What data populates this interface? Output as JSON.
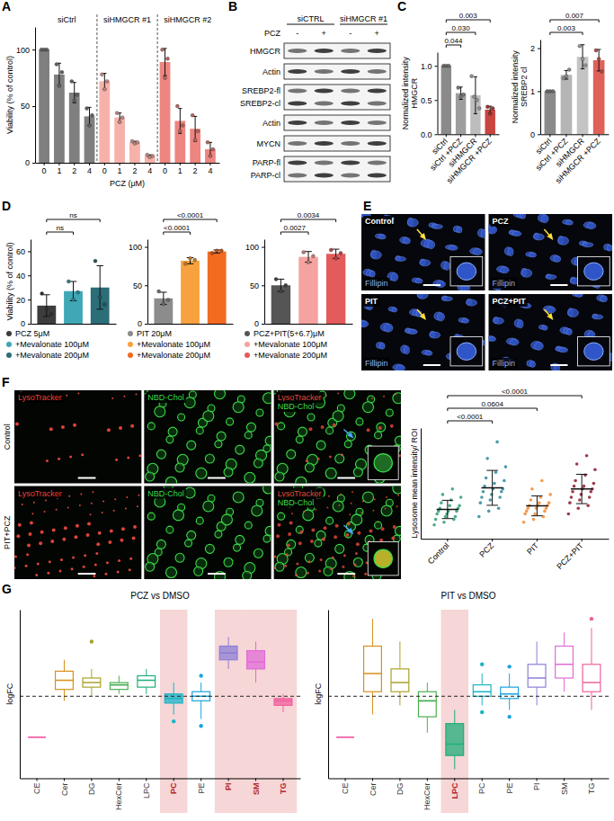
{
  "chart_data": [
    {
      "panel": "A",
      "type": "bar",
      "y_label": "Viability (% of control)",
      "x_label": "PCZ (μM)",
      "ylim": [
        0,
        120
      ],
      "yticks": [
        0,
        50,
        100
      ],
      "series": [
        {
          "name": "siCtrl",
          "color": "#7f7f7f",
          "categories": [
            "0",
            "1",
            "2",
            "4"
          ],
          "values": [
            100,
            78,
            62,
            41
          ],
          "errors": [
            0,
            10,
            9,
            8
          ],
          "points": [
            [
              100,
              100,
              100
            ],
            [
              87,
              68,
              80
            ],
            [
              72,
              55,
              60
            ],
            [
              48,
              33,
              42
            ]
          ]
        },
        {
          "name": "siHMGCR #1",
          "color": "#f6b2aa",
          "categories": [
            "0",
            "1",
            "2",
            "4"
          ],
          "values": [
            72,
            40,
            18,
            6
          ],
          "errors": [
            7,
            4,
            1,
            1
          ],
          "points": [
            [
              78,
              65,
              72
            ],
            [
              44,
              36,
              40
            ],
            [
              19,
              17,
              18
            ],
            [
              7,
              5,
              6
            ]
          ]
        },
        {
          "name": "siHMGCR #2",
          "color": "#ee8580",
          "categories": [
            "0",
            "1",
            "2",
            "4"
          ],
          "values": [
            89,
            37,
            30,
            12
          ],
          "errors": [
            12,
            11,
            11,
            6
          ],
          "points": [
            [
              100,
              75,
              92
            ],
            [
              50,
              28,
              33
            ],
            [
              42,
              20,
              28
            ],
            [
              18,
              6,
              12
            ]
          ]
        }
      ]
    },
    {
      "panel": "B",
      "type": "blot",
      "lane_header": "PCZ",
      "groups": [
        {
          "label": "siCTRL",
          "lanes": [
            "-",
            "+"
          ]
        },
        {
          "label": "siHMGCR #1",
          "lanes": [
            "-",
            "+"
          ]
        }
      ],
      "blocks": [
        [
          "HMGCR"
        ],
        [
          "Actin"
        ],
        [
          "SREBP2-fl",
          "SREBP2-cl"
        ],
        [
          "Actin"
        ],
        [
          "MYCN"
        ],
        [
          "PARP-fl",
          "PARP-cl"
        ]
      ]
    },
    {
      "panel": "C",
      "type": "bar",
      "y_label": "Normalized intensity HMGCR",
      "categories": [
        "siCtrl",
        "siCtrl +PCZ",
        "siHMGCR",
        "siHMGCR +PCZ"
      ],
      "values": [
        1,
        0.6,
        0.57,
        0.36
      ],
      "errors": [
        0,
        0.09,
        0.27,
        0.05
      ],
      "points": [
        [
          1,
          1,
          1
        ],
        [
          0.68,
          0.55,
          0.58
        ],
        [
          0.85,
          0.55,
          0.5,
          0.38
        ],
        [
          0.4,
          0.3,
          0.38
        ]
      ],
      "colors": [
        "#8a8a8a",
        "#9e9e9e",
        "#bdbdbd",
        "#c9453f"
      ],
      "ylim": [
        0,
        1.2
      ],
      "yticks": [
        {
          "value": 0,
          "label": "0.0"
        },
        {
          "value": 0.5,
          "label": "0.5"
        },
        {
          "value": 1,
          "label": "1.0"
        }
      ],
      "comparisons": [
        {
          "a": 0,
          "b": 1,
          "label": "0.044"
        },
        {
          "a": 0,
          "b": 2,
          "label": "0.030"
        },
        {
          "a": 0,
          "b": 3,
          "label": "0.003"
        }
      ]
    },
    {
      "type": "bar",
      "y_label": "Normalized intensity SREBP2 cl",
      "categories": [
        "siCtrl",
        "siCtrl +PCZ",
        "siHMGCR",
        "siHMGCR +PCZ"
      ],
      "values": [
        1,
        1.38,
        1.8,
        1.72
      ],
      "errors": [
        0,
        0.1,
        0.28,
        0.25
      ],
      "points": [
        [
          1,
          1,
          1
        ],
        [
          1.3,
          1.35,
          1.5
        ],
        [
          2.05,
          1.75,
          1.6
        ],
        [
          1.95,
          1.75,
          1.46
        ]
      ],
      "colors": [
        "#8a8a8a",
        "#b5b5b5",
        "#c4c4c4",
        "#e0605a"
      ],
      "ylim": [
        0,
        2.2
      ],
      "yticks": [
        0,
        1,
        2
      ],
      "comparisons": [
        {
          "a": 0,
          "b": 2,
          "label": "0.003"
        },
        {
          "a": 0,
          "b": 3,
          "label": "0.007"
        }
      ]
    },
    {
      "panel": "D",
      "type": "bar",
      "y_label": "Viability (% of control)",
      "categories": [
        "PCZ 5μM",
        "+Mevalonate 100μM",
        "+Mevalonate 200μM"
      ],
      "values": [
        15,
        27,
        30
      ],
      "errors": [
        9,
        8,
        18
      ],
      "points": [
        [
          25,
          12,
          8
        ],
        [
          35,
          20,
          26
        ],
        [
          52,
          22,
          16
        ]
      ],
      "colors": [
        "#3d3d3d",
        "#3fa7b5",
        "#2b6e78"
      ],
      "ylim": [
        0,
        70
      ],
      "yticks": [
        0,
        20,
        40,
        60
      ],
      "legend": "bottom",
      "tick_labels": "y",
      "comparisons": [
        {
          "a": 0,
          "b": 1,
          "label": "ns"
        },
        {
          "a": 0,
          "b": 2,
          "label": "ns"
        }
      ]
    },
    {
      "type": "bar",
      "categories": [
        "PIT 20μM",
        "+Mevalonate 100μM",
        "+Mevalonate 200μM"
      ],
      "values": [
        33,
        82,
        94
      ],
      "errors": [
        8,
        4,
        2
      ],
      "points": [
        [
          42,
          26,
          31
        ],
        [
          78,
          85,
          83
        ],
        [
          92,
          95,
          95
        ]
      ],
      "colors": [
        "#8c8c8c",
        "#f7a23e",
        "#f26b21"
      ],
      "ylim": [
        0,
        110
      ],
      "yticks": [
        0,
        50,
        100
      ],
      "legend": "bottom",
      "tick_labels": "y",
      "comparisons": [
        {
          "a": 0,
          "b": 1,
          "label": "<0.0001"
        },
        {
          "a": 0,
          "b": 2,
          "label": "<0.0001"
        }
      ]
    },
    {
      "type": "bar",
      "categories": [
        "PCZ+PIT(5+6.7)μM",
        "+Mevalonate 100μM",
        "+Mevalonate 200μM"
      ],
      "values": [
        50,
        87,
        91
      ],
      "errors": [
        8,
        7,
        6
      ],
      "points": [
        [
          58,
          42,
          50
        ],
        [
          93,
          80,
          88
        ],
        [
          96,
          85,
          92
        ]
      ],
      "colors": [
        "#555555",
        "#f4a3a0",
        "#e35b5b"
      ],
      "ylim": [
        0,
        110
      ],
      "yticks": [
        0,
        50,
        100
      ],
      "legend": "bottom",
      "tick_labels": "y",
      "comparisons": [
        {
          "a": 0,
          "b": 1,
          "label": "0.0027"
        },
        {
          "a": 0,
          "b": 2,
          "label": "0.0034"
        }
      ]
    },
    {
      "panel": "E",
      "type": "micrograph",
      "titles": [
        "Control",
        "PCZ",
        "PIT",
        "PCZ+PIT"
      ],
      "stain": "Fillipin"
    },
    {
      "panel": "F",
      "type": "micrograph_grid",
      "rows": [
        "Control",
        "PIT+PCZ"
      ],
      "columns": [
        [
          "LysoTracker"
        ],
        [
          "NBD-Chol"
        ],
        [
          "LysoTracker",
          "NBD-Chol"
        ]
      ]
    },
    {
      "type": "dot",
      "y_label": "Lysosome mean intensity/ ROI",
      "categories": [
        "Control",
        "PCZ",
        "PIT",
        "PCZ+PIT"
      ],
      "values": [
        10.6,
        18.4,
        11.9,
        18
      ],
      "errors": [
        3.3,
        6.3,
        3.6,
        5.3
      ],
      "points": [
        [
          5,
          6,
          7,
          7,
          8,
          8,
          9,
          9,
          10,
          10,
          10,
          11,
          11,
          12,
          12,
          13,
          14,
          15,
          16,
          18
        ],
        [
          8,
          10,
          11,
          13,
          14,
          15,
          15,
          16,
          17,
          17,
          18,
          18,
          19,
          20,
          21,
          22,
          24,
          26,
          29,
          35
        ],
        [
          6,
          7,
          8,
          9,
          9,
          10,
          10,
          11,
          11,
          11,
          12,
          12,
          12,
          13,
          13,
          14,
          15,
          16,
          18,
          21
        ],
        [
          9,
          11,
          12,
          13,
          14,
          15,
          15,
          16,
          17,
          17,
          18,
          18,
          19,
          19,
          20,
          21,
          23,
          25,
          27,
          30
        ]
      ],
      "colors": [
        "#2e9e6e",
        "#2a8a9a",
        "#f08a30",
        "#8b1a2b"
      ],
      "ylim": [
        0,
        40
      ],
      "tick_labels": "x",
      "comparisons": [
        {
          "a": 0,
          "b": 1,
          "label": "<0.0001"
        },
        {
          "a": 0,
          "b": 2,
          "label": "0.0604"
        },
        {
          "a": 0,
          "b": 3,
          "label": "<0.0001"
        }
      ]
    },
    {
      "panel": "G",
      "type": "box",
      "title": "PCZ vs DMSO",
      "y_label": "logFC",
      "tick_labels": "x",
      "categories": [
        "CE",
        "Cer",
        "DG",
        "HexCer",
        "LPC",
        "PC",
        "PE",
        "PI",
        "SM",
        "TG"
      ],
      "colors": [
        "#f05fa8",
        "#d98e1a",
        "#a8a32a",
        "#4caf50",
        "#1fae7a",
        "#19b5c7",
        "#1aa3e0",
        "#8e7fd6",
        "#e06bd6",
        "#f0609e"
      ],
      "min": [
        -0.9,
        -0.1,
        0.0,
        0.05,
        0.05,
        -0.4,
        -0.5,
        0.6,
        0.3,
        -0.35
      ],
      "q1": [
        -0.9,
        0.15,
        0.2,
        0.15,
        0.2,
        -0.15,
        -0.1,
        0.8,
        0.6,
        -0.2
      ],
      "median": [
        -0.9,
        0.35,
        0.3,
        0.25,
        0.35,
        -0.05,
        0.0,
        0.95,
        0.75,
        -0.1
      ],
      "q3": [
        -0.9,
        0.55,
        0.4,
        0.3,
        0.45,
        0.05,
        0.1,
        1.1,
        1.0,
        -0.05
      ],
      "max": [
        -0.9,
        0.8,
        0.6,
        0.45,
        0.6,
        0.3,
        0.3,
        1.3,
        1.2,
        0.05
      ],
      "outliers": [
        [],
        [],
        [
          1.2
        ],
        [],
        [],
        [
          -0.55
        ],
        [
          0.45,
          -0.65
        ],
        [],
        [],
        []
      ],
      "highlight": [
        "PC",
        "PI",
        "SM",
        "TG"
      ],
      "reference_value": 0,
      "ylim": [
        -1.8,
        1.9
      ]
    },
    {
      "type": "box",
      "title": "PIT vs DMSO",
      "y_label": "logFC",
      "tick_labels": "x",
      "categories": [
        "CE",
        "Cer",
        "DG",
        "HexCer",
        "LPC",
        "PC",
        "PE",
        "PI",
        "SM",
        "TG"
      ],
      "colors": [
        "#f05fa8",
        "#d98e1a",
        "#a8a32a",
        "#4caf50",
        "#1fae7a",
        "#19b5c7",
        "#1aa3e0",
        "#8e7fd6",
        "#e06bd6",
        "#f0609e"
      ],
      "min": [
        -0.9,
        -0.4,
        -0.2,
        -0.8,
        -1.6,
        -0.2,
        -0.3,
        -0.2,
        0.1,
        -0.3
      ],
      "q1": [
        -0.9,
        0.1,
        0.1,
        -0.45,
        -1.3,
        0.0,
        -0.05,
        0.2,
        0.4,
        0.1
      ],
      "median": [
        -0.9,
        0.5,
        0.3,
        -0.1,
        -1.05,
        0.1,
        0.05,
        0.4,
        0.7,
        0.3
      ],
      "q3": [
        -0.9,
        1.1,
        0.6,
        0.1,
        -0.6,
        0.25,
        0.2,
        0.7,
        1.1,
        0.7
      ],
      "max": [
        -0.9,
        1.7,
        1.2,
        0.3,
        -0.3,
        0.5,
        0.5,
        1.2,
        1.4,
        1.5
      ],
      "outliers": [
        [],
        [],
        [],
        [],
        [],
        [
          0.7,
          -0.35
        ],
        [
          0.65,
          -0.45
        ],
        [],
        [],
        [
          1.7
        ]
      ],
      "highlight": [
        "LPC"
      ],
      "reference_value": 0,
      "ylim": [
        -1.8,
        1.9
      ]
    }
  ]
}
